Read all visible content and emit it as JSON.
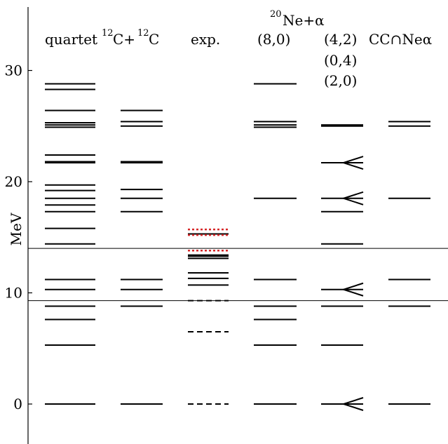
{
  "chart_data": {
    "type": "level-scheme",
    "ylabel": "MeV",
    "ylim": [
      -3.5,
      35
    ],
    "yticks": [
      0,
      10,
      20,
      30
    ],
    "reference_lines": [
      9.3,
      14.0
    ],
    "columns": [
      {
        "id": "quartet",
        "label": "quartet",
        "levels": [
          0,
          5.3,
          7.6,
          8.8,
          10.3,
          11.2,
          14.4,
          15.8,
          17.3,
          17.9,
          18.5,
          19.2,
          19.7,
          21.7,
          21.8,
          22.4,
          24.9,
          25.1,
          25.3,
          26.4,
          28.3,
          28.8
        ]
      },
      {
        "id": "cc",
        "label_sup": "12",
        "label_main": "C+",
        "label_sup2": "12",
        "label_main2": "C",
        "levels": [
          0,
          8.8,
          10.3,
          11.2,
          17.3,
          18.5,
          19.3,
          21.7,
          21.8,
          25.0,
          25.4,
          26.4
        ]
      },
      {
        "id": "exp",
        "label": "exp.",
        "levels": [
          10.7,
          11.3,
          11.8,
          13.1,
          13.3,
          13.4,
          15.3
        ],
        "dashed_levels": [
          0,
          6.5,
          9.3
        ],
        "dotted_levels": [
          13.8,
          15.2,
          15.7
        ]
      },
      {
        "id": "ne8",
        "label_sup": "20",
        "label_main": "Ne+α",
        "label": "(8,0)",
        "levels": [
          0,
          5.3,
          7.6,
          8.8,
          11.2,
          18.5,
          24.9,
          25.1,
          25.4,
          28.8
        ]
      },
      {
        "id": "ne42",
        "labels": [
          "(4,2)",
          "(0,4)",
          "(2,0)"
        ],
        "levels": [
          0,
          5.3,
          8.8,
          10.3,
          14.4,
          17.3,
          18.5,
          21.7,
          25.0,
          25.1
        ],
        "forks": [
          0,
          10.3,
          18.5,
          21.7
        ]
      },
      {
        "id": "ccne",
        "label": "CC∩Neα",
        "levels": [
          0,
          8.8,
          11.2,
          18.5,
          25.0,
          25.4
        ]
      }
    ],
    "colors": {
      "dotted": "#d62728",
      "line": "#000000"
    }
  }
}
